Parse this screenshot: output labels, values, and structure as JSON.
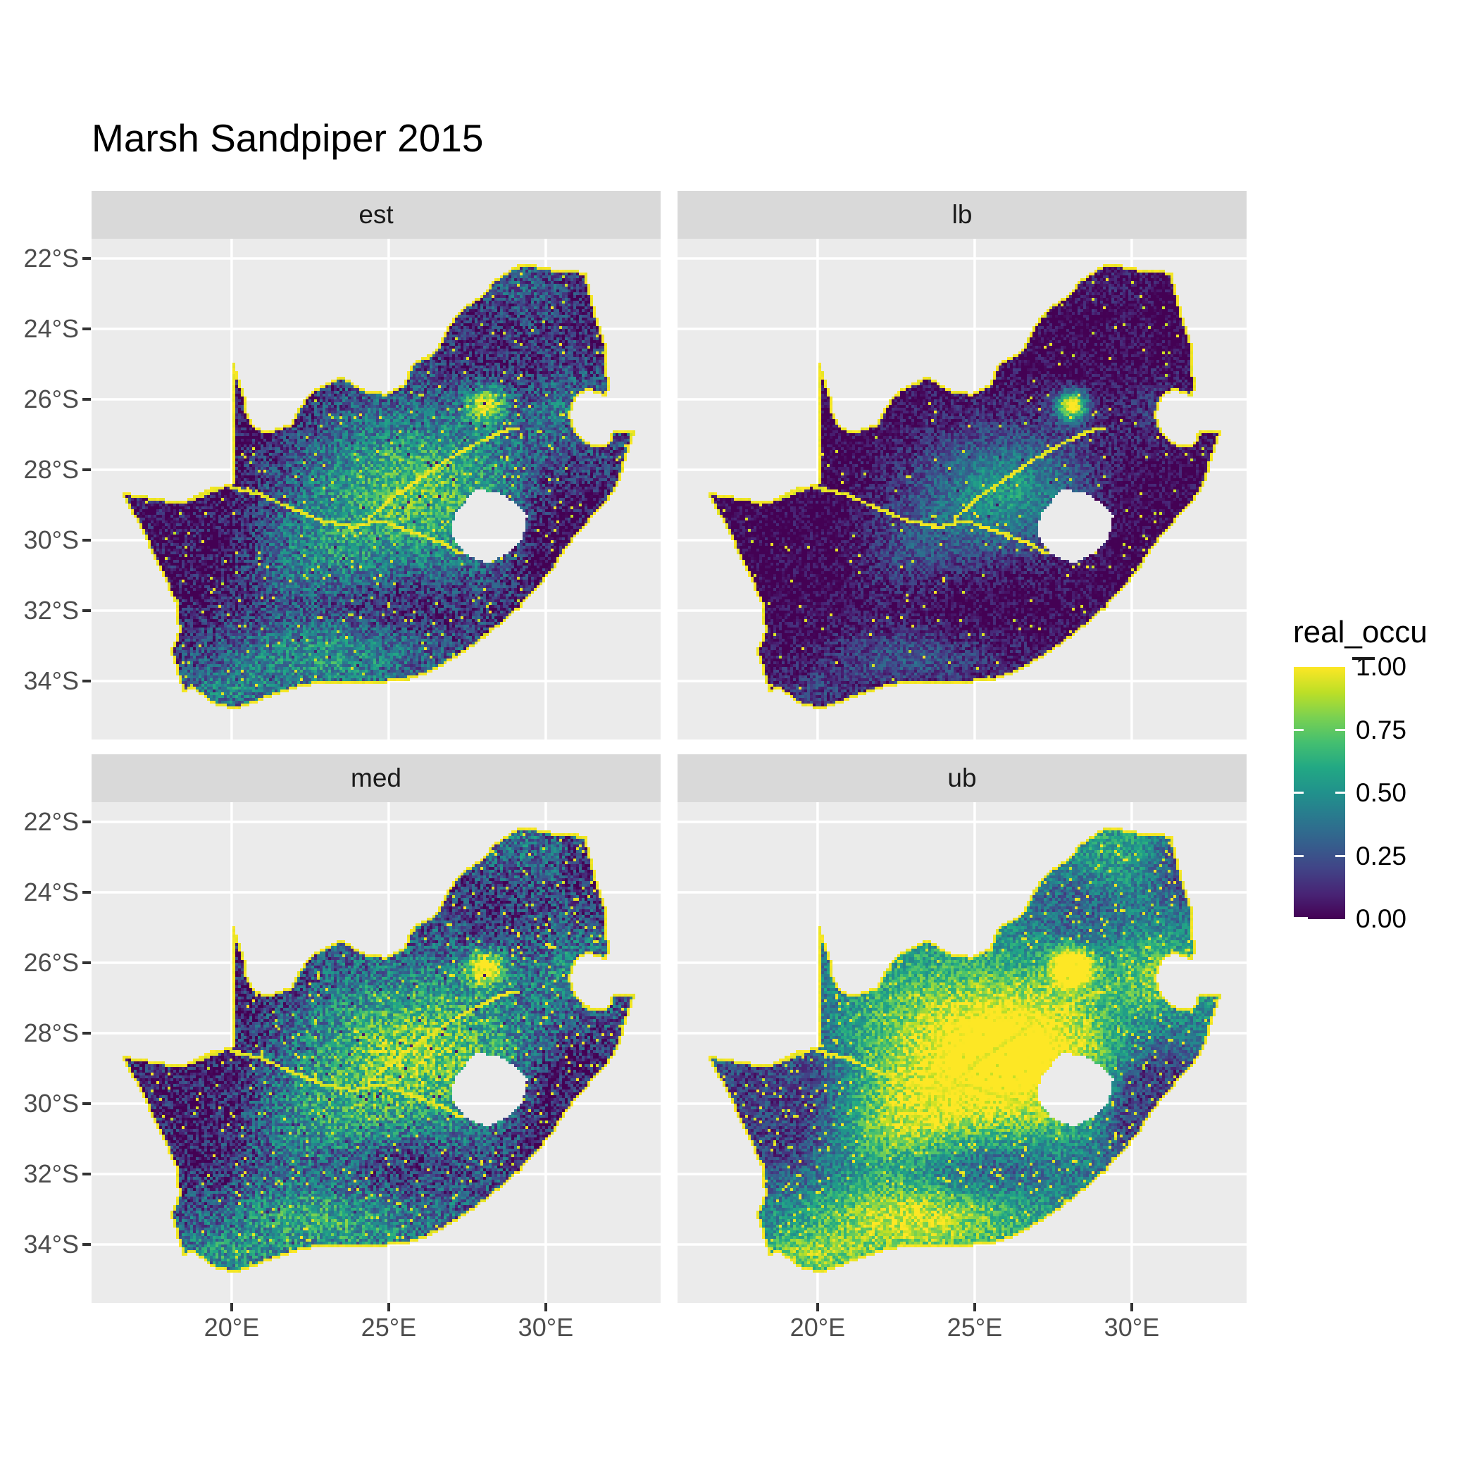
{
  "title": "Marsh Sandpiper 2015",
  "style": {
    "panel_bg": "#ebebeb",
    "strip_bg": "#d9d9d9",
    "gridline": "#ffffff",
    "tick": "#333333",
    "axis_text": "#4d4d4d",
    "text": "#000000",
    "background": "#ffffff",
    "map_border_color": "#f8e621"
  },
  "chart_data": {
    "type": "heatmap",
    "subtype": "faceted_raster_occupancy_map",
    "region": "South Africa",
    "title": "Marsh Sandpiper 2015",
    "facets": [
      {
        "label": "est",
        "tone": "medium",
        "description": "Point estimate: dark purple northwest and coasts, green-yellow central plateau, yellow border and river cells"
      },
      {
        "label": "lb",
        "tone": "dark",
        "description": "Lower bound: mostly dark purple, teal-green central band, yellow rivers and Gauteng hotspot"
      },
      {
        "label": "med",
        "tone": "medium-bright",
        "description": "Median: like estimate but brighter, extensive green speckle"
      },
      {
        "label": "ub",
        "tone": "bright",
        "description": "Upper bound: largely yellow interior, smooth teal northwest wedge, dark coastal strips"
      }
    ],
    "x_axis": {
      "ticks": [
        {
          "value": 20,
          "label": "20°E"
        },
        {
          "value": 25,
          "label": "25°E"
        },
        {
          "value": 30,
          "label": "30°E"
        }
      ],
      "range_deg_east": [
        15.5,
        33.7
      ],
      "gridlines": true
    },
    "y_axis": {
      "ticks": [
        {
          "value": 22,
          "label": "22°S"
        },
        {
          "value": 24,
          "label": "24°S"
        },
        {
          "value": 26,
          "label": "26°S"
        },
        {
          "value": 28,
          "label": "28°S"
        },
        {
          "value": 30,
          "label": "30°S"
        },
        {
          "value": 32,
          "label": "32°S"
        },
        {
          "value": 34,
          "label": "34°S"
        }
      ],
      "range_deg_south": [
        21.4,
        35.7
      ],
      "gridlines": true
    },
    "legend": {
      "title": "real_occu",
      "limits": [
        0,
        1
      ],
      "breaks": [
        1.0,
        0.75,
        0.5,
        0.25,
        0.0
      ],
      "labels": [
        "1.00",
        "0.75",
        "0.50",
        "0.25",
        "0.00"
      ],
      "palette": "viridis",
      "position": "right"
    },
    "palette_stops": [
      "#440154",
      "#482475",
      "#414487",
      "#355f8d",
      "#2a788e",
      "#21918c",
      "#22a884",
      "#44bf70",
      "#7ad151",
      "#bddf26",
      "#fde725"
    ],
    "map_features": {
      "hole": "Lesotho shown as background-colored hole",
      "notch": "Eswatini notch on eastern border",
      "high_occupancy_lines": [
        "coastal/country border outline",
        "Orange River",
        "Vaal River"
      ],
      "hotspot": "Gauteng area stays yellow in all facets"
    }
  }
}
